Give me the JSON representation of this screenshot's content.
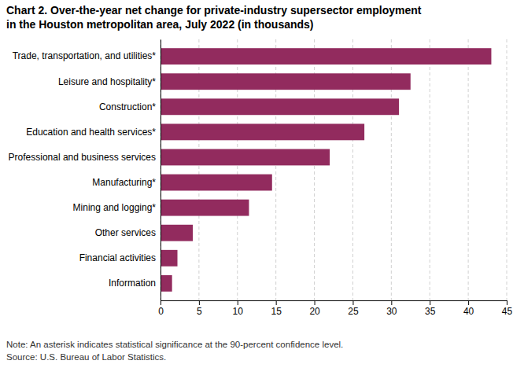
{
  "chart_data": {
    "type": "bar",
    "orientation": "horizontal",
    "title": "Chart 2. Over-the-year net change for private-industry supersector employment",
    "subtitle": "in the Houston metropolitan area, July 2022 (in thousands)",
    "categories": [
      "Information",
      "Financial activities",
      "Other services",
      "Mining and logging*",
      "Manufacturing*",
      "Professional and business services",
      "Education and health services*",
      "Construction*",
      "Leisure and hospitality*",
      "Trade, transportation, and utilities*"
    ],
    "values": [
      1.5,
      2.2,
      4.2,
      11.5,
      14.5,
      22.0,
      26.5,
      31.0,
      32.5,
      43.0
    ],
    "color": "#922B5E",
    "xlim": [
      0,
      45
    ],
    "xticks": [
      0,
      5,
      10,
      15,
      20,
      25,
      30,
      35,
      40,
      45
    ],
    "grid": true,
    "annotations": [
      "Note: An asterisk indicates statistical significance at the 90-percent confidence level.",
      "Source: U.S. Bureau of Labor Statistics."
    ]
  }
}
